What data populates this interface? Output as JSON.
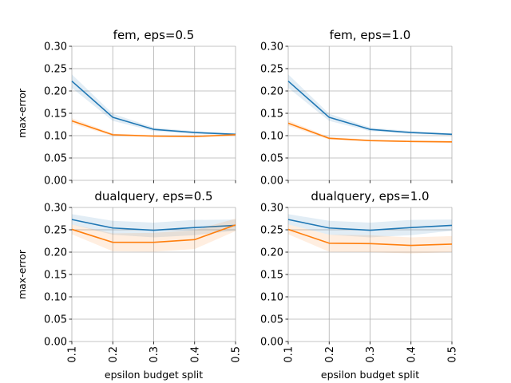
{
  "chart_data": [
    {
      "type": "line",
      "title": "fem, eps=0.5",
      "xlabel": "",
      "ylabel": "max-error",
      "x": [
        0.1,
        0.2,
        0.3,
        0.4,
        0.5
      ],
      "xticklabels": [
        "0.1",
        "0.2",
        "0.3",
        "0.4",
        "0.5"
      ],
      "ylim": [
        0,
        0.3
      ],
      "yticks": [
        0.0,
        0.05,
        0.1,
        0.15,
        0.2,
        0.25,
        0.3
      ],
      "yticklabels": [
        "0.00",
        "0.05",
        "0.10",
        "0.15",
        "0.20",
        "0.25",
        "0.30"
      ],
      "grid": true,
      "series": [
        {
          "color": "#1f77b4",
          "values": [
            0.222,
            0.141,
            0.114,
            0.107,
            0.103
          ],
          "band_low": [
            0.207,
            0.133,
            0.11,
            0.104,
            0.101
          ],
          "band_high": [
            0.237,
            0.149,
            0.118,
            0.11,
            0.105
          ]
        },
        {
          "color": "#ff7f0e",
          "values": [
            0.133,
            0.102,
            0.099,
            0.098,
            0.102
          ],
          "band_low": [
            0.127,
            0.099,
            0.097,
            0.096,
            0.1
          ],
          "band_high": [
            0.139,
            0.105,
            0.101,
            0.1,
            0.104
          ]
        }
      ]
    },
    {
      "type": "line",
      "title": "fem, eps=1.0",
      "xlabel": "",
      "ylabel": "",
      "x": [
        0.1,
        0.2,
        0.3,
        0.4,
        0.5
      ],
      "xticklabels": [
        "0.1",
        "0.2",
        "0.3",
        "0.4",
        "0.5"
      ],
      "ylim": [
        0,
        0.3
      ],
      "yticks": [
        0.0,
        0.05,
        0.1,
        0.15,
        0.2,
        0.25,
        0.3
      ],
      "yticklabels": [
        "0.00",
        "0.05",
        "0.10",
        "0.15",
        "0.20",
        "0.25",
        "0.30"
      ],
      "grid": true,
      "series": [
        {
          "color": "#1f77b4",
          "values": [
            0.222,
            0.141,
            0.114,
            0.107,
            0.103
          ],
          "band_low": [
            0.207,
            0.133,
            0.11,
            0.104,
            0.101
          ],
          "band_high": [
            0.237,
            0.149,
            0.118,
            0.11,
            0.105
          ]
        },
        {
          "color": "#ff7f0e",
          "values": [
            0.128,
            0.094,
            0.089,
            0.087,
            0.086
          ],
          "band_low": [
            0.122,
            0.091,
            0.087,
            0.085,
            0.084
          ],
          "band_high": [
            0.134,
            0.097,
            0.091,
            0.089,
            0.088
          ]
        }
      ]
    },
    {
      "type": "line",
      "title": "dualquery, eps=0.5",
      "xlabel": "epsilon budget split",
      "ylabel": "max-error",
      "x": [
        0.1,
        0.2,
        0.3,
        0.4,
        0.5
      ],
      "xticklabels": [
        "0.1",
        "0.2",
        "0.3",
        "0.4",
        "0.5"
      ],
      "ylim": [
        0,
        0.3
      ],
      "yticks": [
        0.0,
        0.05,
        0.1,
        0.15,
        0.2,
        0.25,
        0.3
      ],
      "yticklabels": [
        "0.00",
        "0.05",
        "0.10",
        "0.15",
        "0.20",
        "0.25",
        "0.30"
      ],
      "grid": true,
      "series": [
        {
          "color": "#1f77b4",
          "values": [
            0.273,
            0.254,
            0.249,
            0.255,
            0.26
          ],
          "band_low": [
            0.262,
            0.239,
            0.233,
            0.238,
            0.248
          ],
          "band_high": [
            0.285,
            0.27,
            0.266,
            0.272,
            0.273
          ]
        },
        {
          "color": "#ff7f0e",
          "values": [
            0.251,
            0.222,
            0.222,
            0.228,
            0.261
          ],
          "band_low": [
            0.24,
            0.202,
            0.201,
            0.207,
            0.247
          ],
          "band_high": [
            0.262,
            0.242,
            0.243,
            0.249,
            0.275
          ]
        }
      ]
    },
    {
      "type": "line",
      "title": "dualquery, eps=1.0",
      "xlabel": "epsilon budget split",
      "ylabel": "",
      "x": [
        0.1,
        0.2,
        0.3,
        0.4,
        0.5
      ],
      "xticklabels": [
        "0.1",
        "0.2",
        "0.3",
        "0.4",
        "0.5"
      ],
      "ylim": [
        0,
        0.3
      ],
      "yticks": [
        0.0,
        0.05,
        0.1,
        0.15,
        0.2,
        0.25,
        0.3
      ],
      "yticklabels": [
        "0.00",
        "0.05",
        "0.10",
        "0.15",
        "0.20",
        "0.25",
        "0.30"
      ],
      "grid": true,
      "series": [
        {
          "color": "#1f77b4",
          "values": [
            0.273,
            0.254,
            0.249,
            0.255,
            0.26
          ],
          "band_low": [
            0.262,
            0.239,
            0.233,
            0.238,
            0.248
          ],
          "band_high": [
            0.285,
            0.27,
            0.266,
            0.272,
            0.273
          ]
        },
        {
          "color": "#ff7f0e",
          "values": [
            0.251,
            0.22,
            0.219,
            0.215,
            0.218
          ],
          "band_low": [
            0.24,
            0.201,
            0.2,
            0.197,
            0.2
          ],
          "band_high": [
            0.262,
            0.239,
            0.238,
            0.233,
            0.236
          ]
        }
      ]
    }
  ]
}
